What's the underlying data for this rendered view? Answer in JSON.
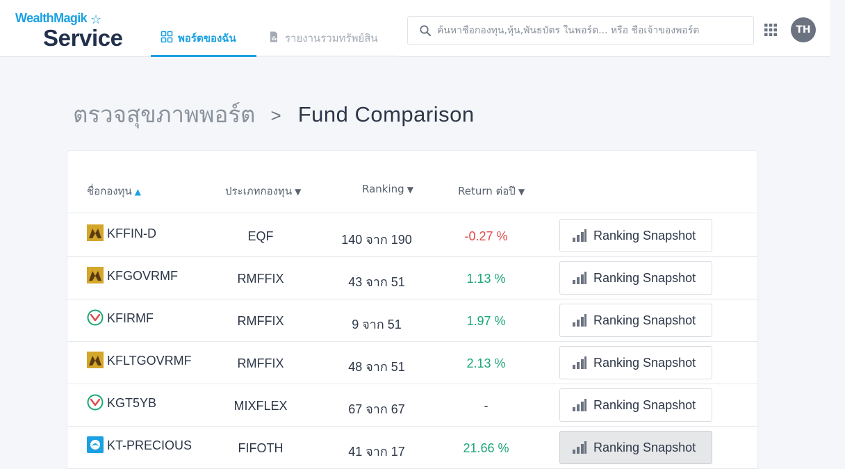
{
  "brand": {
    "top": "WealthMagik",
    "bottom": "Service"
  },
  "nav": {
    "tabs": [
      {
        "label": "พอร์ตของฉัน",
        "active": true
      },
      {
        "label": "รายงานรวมทรัพย์สิน",
        "active": false
      }
    ]
  },
  "search": {
    "placeholder": "ค้นหาชื่อกองทุน,หุ้น,พันธบัตร ในพอร์ต... หรือ ชื่อเจ้าของพอร์ต",
    "value": ""
  },
  "user": {
    "initials": "TH"
  },
  "breadcrumb": {
    "parent": "ตรวจสุขภาพพอร์ต",
    "separator": ">",
    "current": "Fund Comparison"
  },
  "table": {
    "columns": [
      {
        "label": "ชื่อกองทุน",
        "sort": "▲"
      },
      {
        "label": "ประเภทกองทุน",
        "sort": "▼"
      },
      {
        "label": "Ranking",
        "sort": "▼"
      },
      {
        "label": "Return ต่อปี",
        "sort": "▼"
      }
    ],
    "rows": [
      {
        "name": "KFFIN-D",
        "type": "EQF",
        "ranking": "140 จาก 190",
        "return": "-0.27 %",
        "return_status": "negative",
        "logo_icon": "krungsri-logo-icon",
        "action": "Ranking Snapshot"
      },
      {
        "name": "KFGOVRMF",
        "type": "RMFFIX",
        "ranking": "43 จาก 51",
        "return": "1.13 %",
        "return_status": "positive",
        "logo_icon": "krungsri-logo-icon",
        "action": "Ranking Snapshot"
      },
      {
        "name": "KFIRMF",
        "type": "RMFFIX",
        "ranking": "9 จาก 51",
        "return": "1.97 %",
        "return_status": "positive",
        "logo_icon": "kasikorn-logo-icon",
        "action": "Ranking Snapshot"
      },
      {
        "name": "KFLTGOVRMF",
        "type": "RMFFIX",
        "ranking": "48 จาก 51",
        "return": "2.13 %",
        "return_status": "positive",
        "logo_icon": "krungsri-logo-icon",
        "action": "Ranking Snapshot"
      },
      {
        "name": "KGT5YB",
        "type": "MIXFLEX",
        "ranking": "67 จาก 67",
        "return": "-",
        "return_status": "none",
        "logo_icon": "kasikorn-logo-icon",
        "action": "Ranking Snapshot"
      },
      {
        "name": "KT-PRECIOUS",
        "type": "FIFOTH",
        "ranking": "41 จาก 17",
        "return": "21.66 %",
        "return_status": "positive",
        "logo_icon": "krungthai-logo-icon",
        "action": "Ranking Snapshot"
      }
    ]
  },
  "colors": {
    "accent": "#1ba1e2",
    "positive": "#1aa774",
    "negative": "#e04848",
    "krungsri": "#d4a62a",
    "kasikorn": "#1aa774",
    "krungthai": "#1ba1e2"
  }
}
